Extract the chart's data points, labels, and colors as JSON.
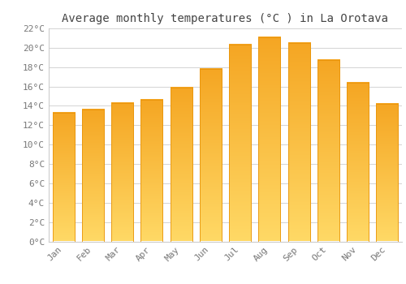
{
  "title": "Average monthly temperatures (°C ) in La Orotava",
  "months": [
    "Jan",
    "Feb",
    "Mar",
    "Apr",
    "May",
    "Jun",
    "Jul",
    "Aug",
    "Sep",
    "Oct",
    "Nov",
    "Dec"
  ],
  "values": [
    13.3,
    13.6,
    14.3,
    14.6,
    15.9,
    17.8,
    20.3,
    21.1,
    20.5,
    18.7,
    16.4,
    14.2
  ],
  "bar_color_bottom": "#F5A623",
  "bar_color_top": "#FFD966",
  "bar_edge_color": "#E8940A",
  "background_color": "#FFFFFF",
  "grid_color": "#CCCCCC",
  "ylim": [
    0,
    22
  ],
  "yticks": [
    0,
    2,
    4,
    6,
    8,
    10,
    12,
    14,
    16,
    18,
    20,
    22
  ],
  "title_fontsize": 10,
  "tick_fontsize": 8,
  "title_color": "#444444",
  "tick_color": "#777777",
  "bar_width": 0.75
}
